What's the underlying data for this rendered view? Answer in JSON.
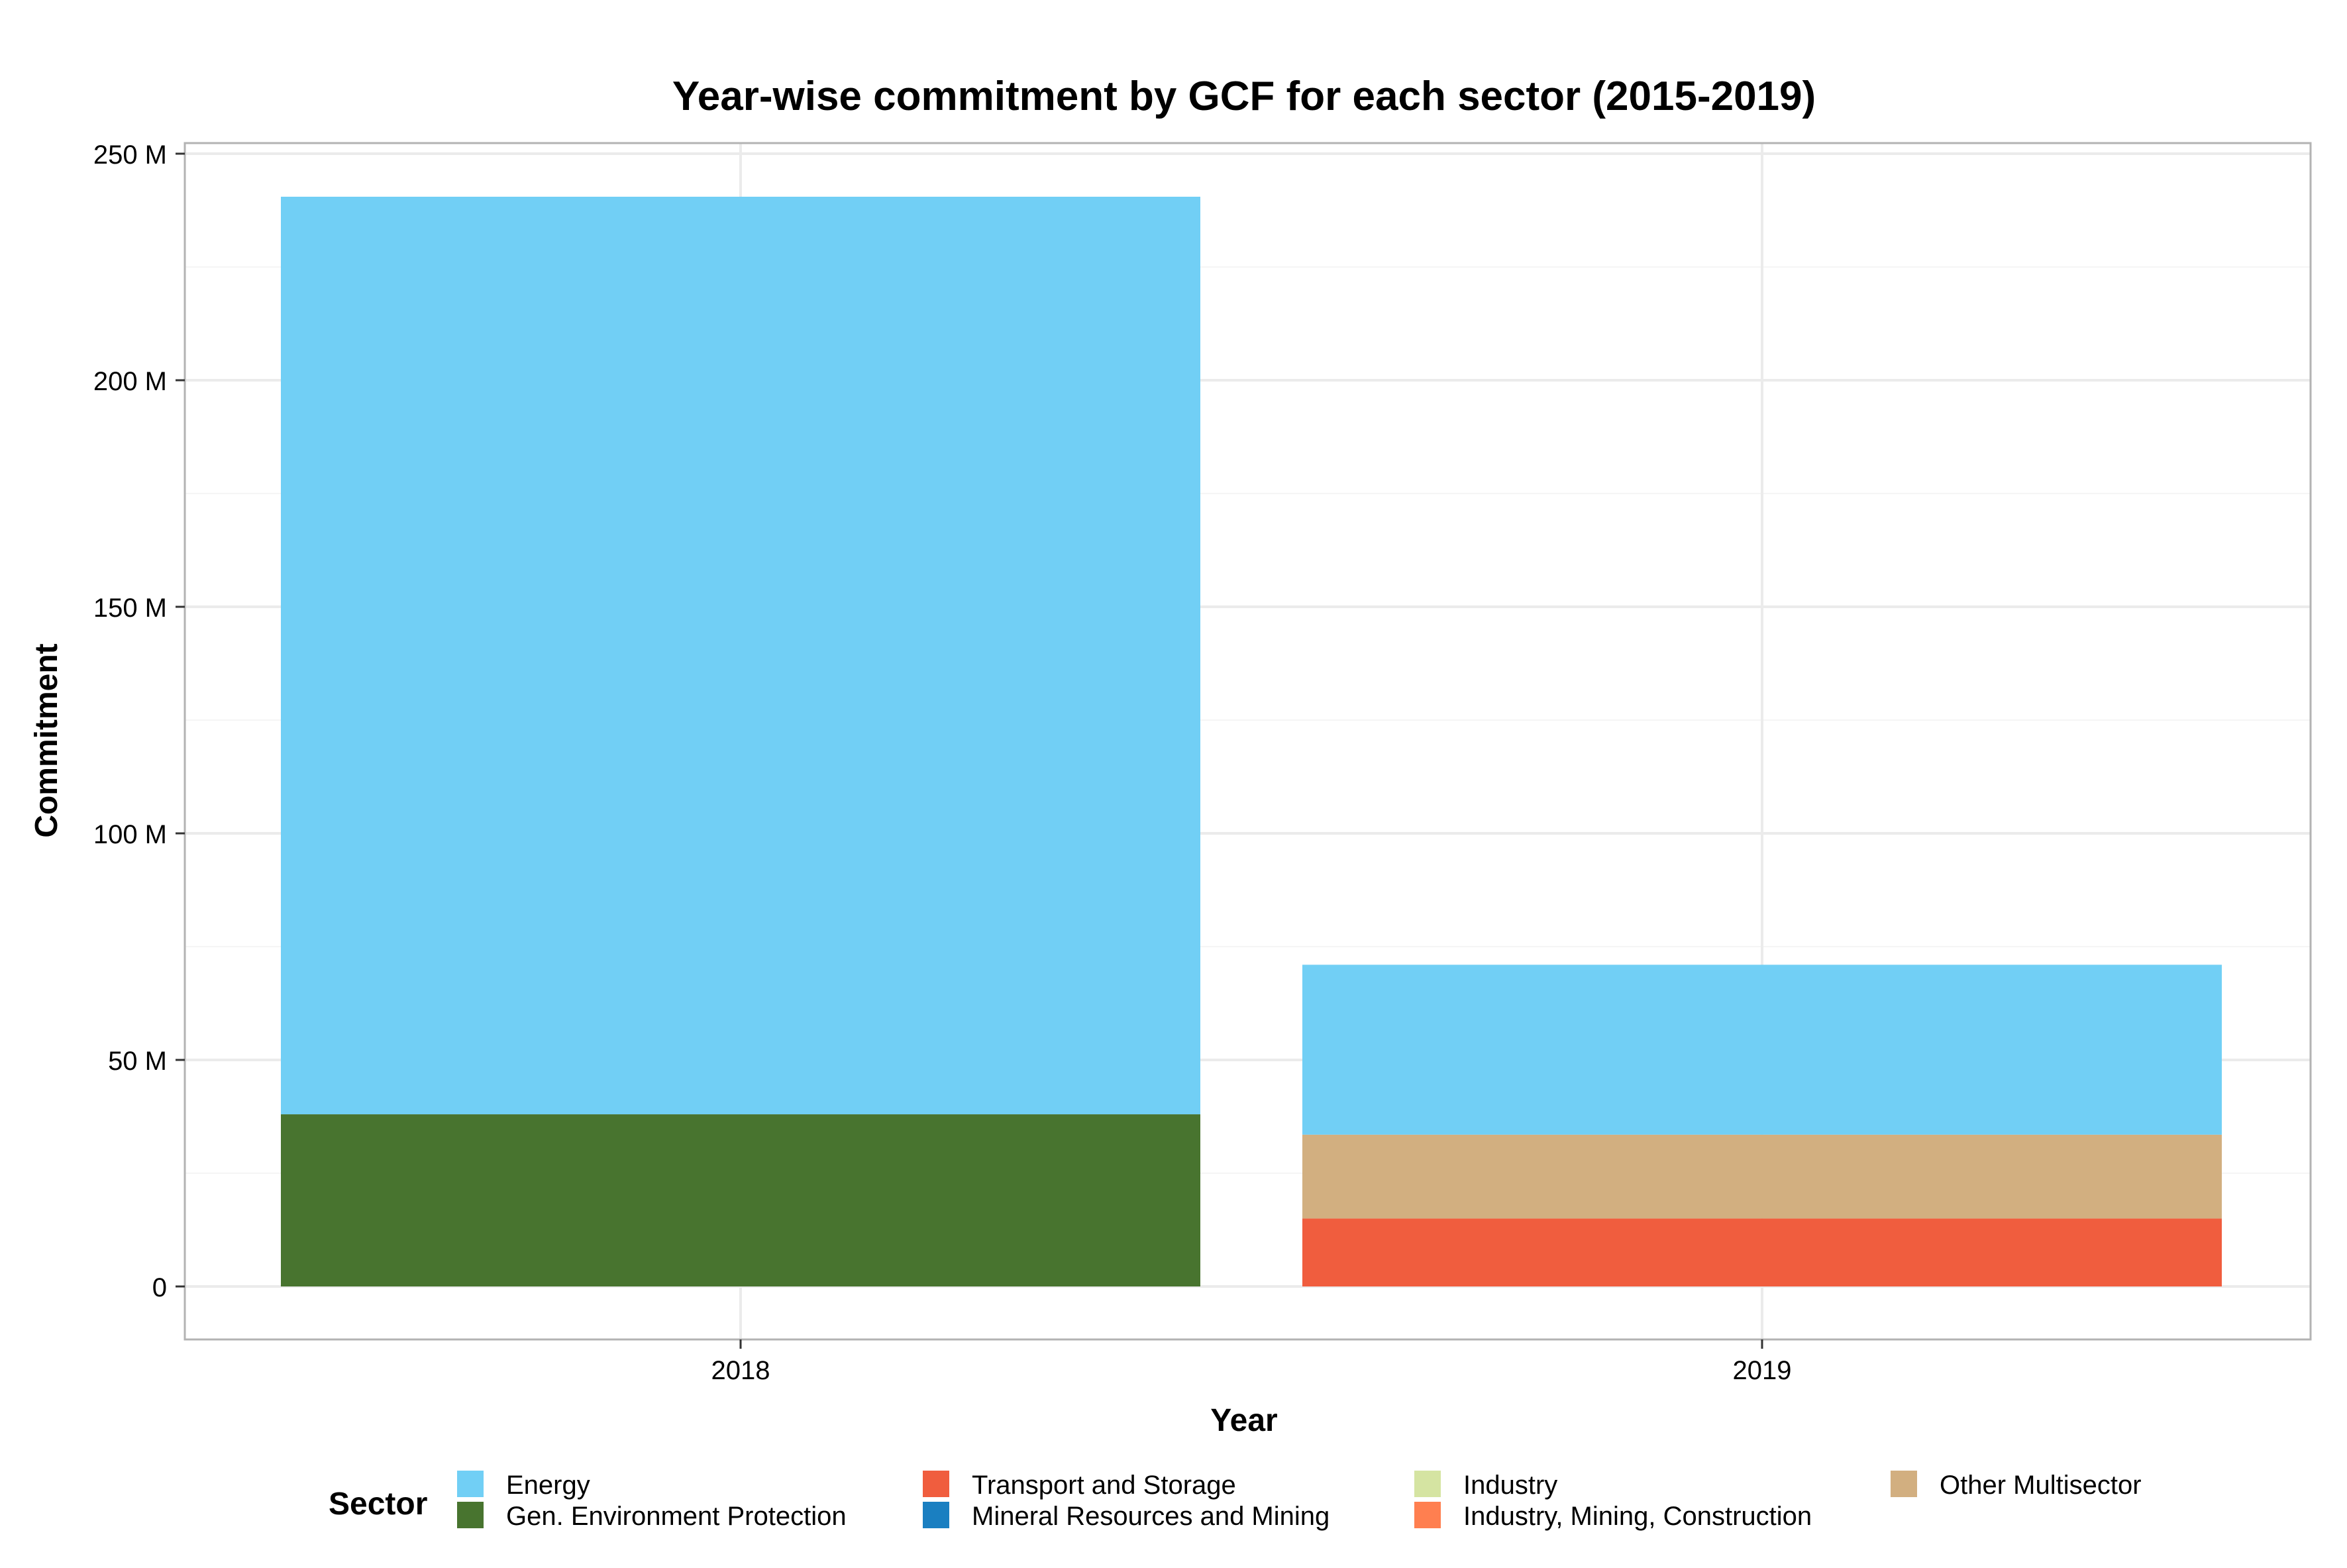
{
  "chart_data": {
    "type": "bar",
    "stacked": true,
    "title": "Year-wise commitment by GCF for each sector (2015-2019)",
    "xlabel": "Year",
    "ylabel": "Commitment",
    "categories": [
      "2018",
      "2019"
    ],
    "ylim": [
      0,
      250000000
    ],
    "yticks": [
      {
        "value": 0,
        "label": "0"
      },
      {
        "value": 50000000,
        "label": "50 M"
      },
      {
        "value": 100000000,
        "label": "100 M"
      },
      {
        "value": 150000000,
        "label": "150 M"
      },
      {
        "value": 200000000,
        "label": "200 M"
      },
      {
        "value": 250000000,
        "label": "250 M"
      }
    ],
    "grid": true,
    "legend": {
      "title": "Sector",
      "placement": "bottom",
      "entries": [
        {
          "name": "Energy",
          "color": "#71CFF5"
        },
        {
          "name": "Gen. Environment Protection",
          "color": "#48742F"
        },
        {
          "name": "Transport and Storage",
          "color": "#F05D3E"
        },
        {
          "name": "Mineral Resources and Mining",
          "color": "#1A7FC1"
        },
        {
          "name": "Industry",
          "color": "#D5E4A2"
        },
        {
          "name": "Industry, Mining, Construction",
          "color": "#FF7F50"
        },
        {
          "name": "Other Multisector",
          "color": "#D2AF80"
        }
      ]
    },
    "series": [
      {
        "name": "Gen. Environment Protection",
        "color": "#48742F",
        "values": [
          38000000,
          0
        ]
      },
      {
        "name": "Transport and Storage",
        "color": "#F05D3E",
        "values": [
          0,
          15000000
        ]
      },
      {
        "name": "Other Multisector",
        "color": "#D2AF80",
        "values": [
          0,
          18500000
        ]
      },
      {
        "name": "Energy",
        "color": "#71CFF5",
        "values": [
          202500000,
          37500000
        ]
      }
    ]
  }
}
